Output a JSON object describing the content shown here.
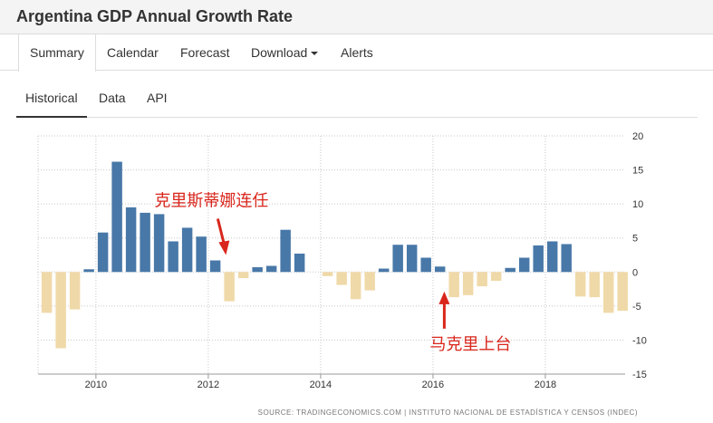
{
  "page": {
    "title": "Argentina GDP Annual Growth Rate"
  },
  "main_tabs": [
    {
      "label": "Summary",
      "active": true
    },
    {
      "label": "Calendar"
    },
    {
      "label": "Forecast"
    },
    {
      "label": "Download"
    },
    {
      "label": "Alerts"
    }
  ],
  "sub_tabs": [
    {
      "label": "Historical",
      "active": true
    },
    {
      "label": "Data"
    },
    {
      "label": "API"
    }
  ],
  "colors": {
    "positive": "#4878a8",
    "negative": "#f0d9a8",
    "annotation": "#d9261c"
  },
  "chart_data": {
    "type": "bar",
    "title": "Argentina GDP Annual Growth Rate",
    "x_start": 2009.0,
    "x_step": 0.25,
    "values": [
      -6.0,
      -11.2,
      -5.5,
      0.4,
      5.8,
      16.2,
      9.5,
      8.7,
      8.5,
      4.5,
      6.5,
      5.2,
      1.7,
      -4.3,
      -0.9,
      0.7,
      0.9,
      6.2,
      2.7,
      0.0,
      -0.6,
      -1.9,
      -4.0,
      -2.7,
      0.5,
      4.0,
      4.0,
      2.1,
      0.8,
      -3.7,
      -3.4,
      -2.1,
      -1.3,
      0.6,
      2.1,
      3.9,
      4.5,
      4.1,
      -3.6,
      -3.7,
      -6.0,
      -5.7
    ],
    "x_ticks": [
      2010,
      2012,
      2014,
      2016,
      2018
    ],
    "x_tick_labels": [
      "2010",
      "2012",
      "2014",
      "2016",
      "2018"
    ],
    "y_ticks": [
      -15,
      -10,
      -5,
      0,
      5,
      10,
      15,
      20
    ],
    "y_tick_labels": [
      "-15",
      "-10",
      "-5",
      "0",
      "5",
      "10",
      "15",
      "20"
    ],
    "ylim": [
      -15,
      20
    ],
    "xlim": [
      2008.97,
      2019.42
    ],
    "grid": true,
    "annotations": [
      {
        "text": "克里斯蒂娜连任",
        "x": 2012.33,
        "y": 1.7
      },
      {
        "text": "马克里上台",
        "x": 2016.33,
        "y": -3.4
      }
    ],
    "source": "SOURCE: TRADINGECONOMICS.COM | INSTITUTO NACIONAL DE ESTADÍSTICA Y CENSOS (INDEC)"
  }
}
